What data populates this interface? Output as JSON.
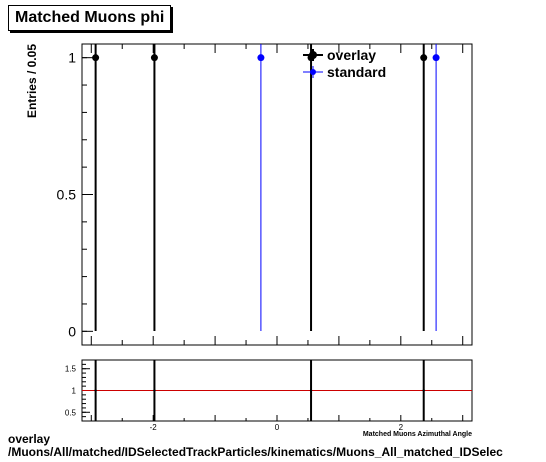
{
  "title": "Matched Muons phi",
  "footer": {
    "line1": "overlay",
    "line2": "/Muons/All/matched/IDSelectedTrackParticles/kinematics/Muons_All_matched_IDSelec"
  },
  "colors": {
    "overlay": "#000000",
    "standard": "#0000ff",
    "ratio_line": "#cc0000"
  },
  "chart_data": [
    {
      "type": "scatter",
      "ylabel": "Entries / 0.05",
      "xlim": [
        -3.15,
        3.15
      ],
      "ylim": [
        -0.05,
        1.05
      ],
      "yticks": [
        0,
        0.5,
        1
      ],
      "ytick_labels": [
        "0",
        "0.5",
        "1"
      ],
      "legend_placement": "top-right",
      "series": [
        {
          "name": "overlay",
          "x": [
            -2.93,
            -1.98,
            0.55,
            2.37
          ],
          "y": [
            1,
            1,
            1,
            1
          ]
        },
        {
          "name": "standard",
          "x": [
            -0.26,
            2.57
          ],
          "y": [
            1,
            1
          ]
        }
      ]
    },
    {
      "type": "scatter",
      "xlabel": "Matched Muons Azimuthal Angle",
      "xlim": [
        -3.15,
        3.15
      ],
      "ylim": [
        0.3,
        1.7
      ],
      "yticks": [
        0.5,
        1,
        1.5
      ],
      "ytick_labels": [
        "0.5",
        "1",
        "1.5"
      ],
      "xticks": [
        -2,
        0,
        2
      ],
      "xtick_labels": [
        "-2",
        "0",
        "2"
      ],
      "reference_y": 1,
      "series": [
        {
          "name": "",
          "x": [
            -2.93,
            -1.98,
            0.55,
            2.37
          ],
          "y": [
            1,
            1,
            1,
            1
          ]
        }
      ]
    }
  ]
}
